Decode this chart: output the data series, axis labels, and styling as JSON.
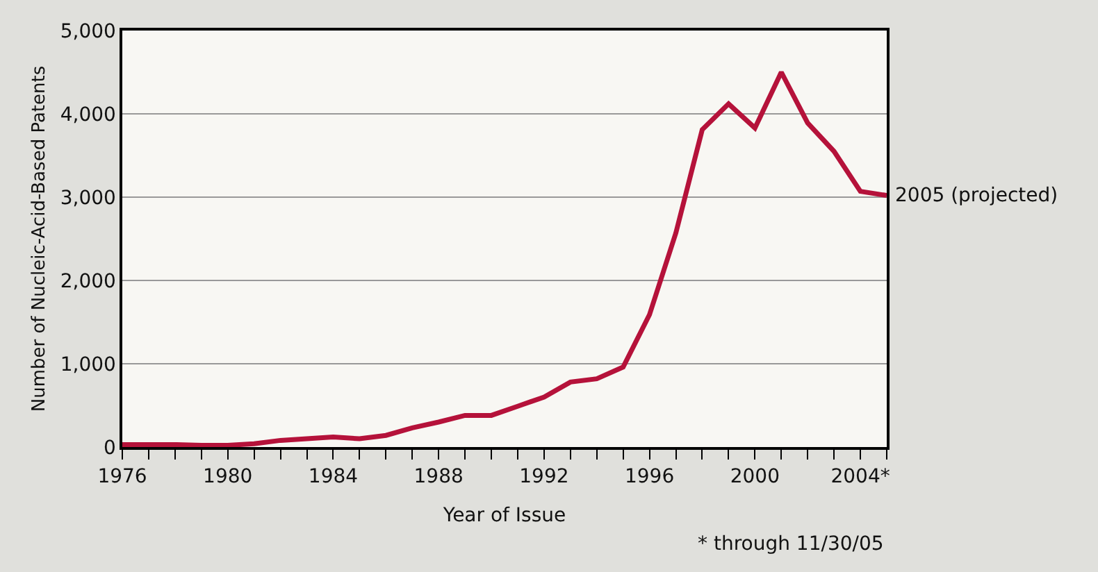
{
  "chart_data": {
    "type": "line",
    "xlabel": "Year of Issue",
    "ylabel": "Number of Nucleic-Acid-Based Patents",
    "x": [
      1976,
      1977,
      1978,
      1979,
      1980,
      1981,
      1982,
      1983,
      1984,
      1985,
      1986,
      1987,
      1988,
      1989,
      1990,
      1991,
      1992,
      1993,
      1994,
      1995,
      1996,
      1997,
      1998,
      1999,
      2000,
      2001,
      2002,
      2003,
      2004,
      2005
    ],
    "series": [
      {
        "color": "#b5123a",
        "values": [
          30,
          30,
          30,
          20,
          20,
          40,
          80,
          100,
          120,
          100,
          140,
          230,
          300,
          380,
          380,
          490,
          600,
          780,
          820,
          960,
          1590,
          2570,
          3810,
          4120,
          3830,
          4500,
          3890,
          3550,
          3070,
          3020
        ]
      }
    ],
    "xlim": [
      1976,
      2005
    ],
    "xticks": [
      1976,
      {
        "value": 1977,
        "label": null
      },
      {
        "value": 1978,
        "label": null
      },
      {
        "value": 1979,
        "label": null
      },
      1980,
      {
        "value": 1981,
        "label": null
      },
      {
        "value": 1982,
        "label": null
      },
      {
        "value": 1983,
        "label": null
      },
      1984,
      {
        "value": 1985,
        "label": null
      },
      {
        "value": 1986,
        "label": null
      },
      {
        "value": 1987,
        "label": null
      },
      1988,
      {
        "value": 1989,
        "label": null
      },
      {
        "value": 1990,
        "label": null
      },
      {
        "value": 1991,
        "label": null
      },
      1992,
      {
        "value": 1993,
        "label": null
      },
      {
        "value": 1994,
        "label": null
      },
      {
        "value": 1995,
        "label": null
      },
      1996,
      {
        "value": 1997,
        "label": null
      },
      {
        "value": 1998,
        "label": null
      },
      {
        "value": 1999,
        "label": null
      },
      2000,
      {
        "value": 2001,
        "label": null
      },
      {
        "value": 2002,
        "label": null
      },
      {
        "value": 2003,
        "label": null
      },
      {
        "value": 2004,
        "label": "2004*"
      },
      {
        "value": 2005,
        "label": null
      }
    ],
    "ylim": [
      0,
      5000
    ],
    "yticks": [
      {
        "value": 0,
        "label": "0"
      },
      {
        "value": 1000,
        "label": "1,000"
      },
      {
        "value": 2000,
        "label": "2,000"
      },
      {
        "value": 3000,
        "label": "3,000"
      },
      {
        "value": 4000,
        "label": "4,000"
      },
      {
        "value": 5000,
        "label": "5,000"
      }
    ],
    "grid": "y",
    "marker": "none",
    "line_style": "solid",
    "annotations": [
      {
        "text": "2005 (projected)",
        "x": 2005,
        "y": 3020
      },
      "* through 11/30/05"
    ]
  }
}
